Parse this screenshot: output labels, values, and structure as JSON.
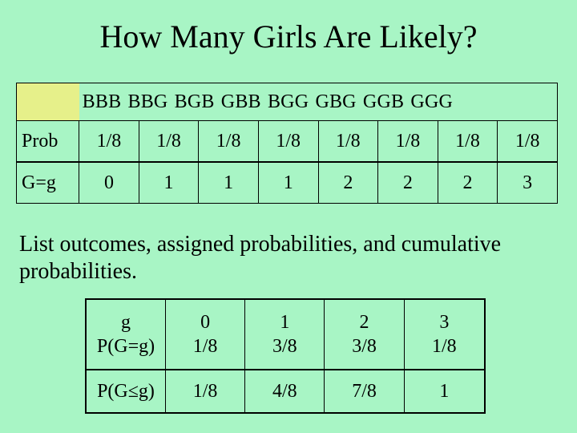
{
  "title": "How Many Girls Are Likely?",
  "outcomes_table": {
    "outcomes": [
      "BBB",
      "BBG",
      "BGB",
      "GBB",
      "BGG",
      "GBG",
      "GGB",
      "GGG"
    ],
    "rows": [
      {
        "label": "Prob",
        "values": [
          "1/8",
          "1/8",
          "1/8",
          "1/8",
          "1/8",
          "1/8",
          "1/8",
          "1/8"
        ]
      },
      {
        "label": "G=g",
        "values": [
          "0",
          "1",
          "1",
          "1",
          "2",
          "2",
          "2",
          "3"
        ]
      }
    ]
  },
  "paragraph": "List outcomes, assigned probabilities, and cumulative probabilities.",
  "cumulative_table": {
    "g_label": "g",
    "pmf_label": "P(G=g)",
    "cdf_label": "P(G≤g)",
    "g_values": [
      "0",
      "1",
      "2",
      "3"
    ],
    "pmf_values": [
      "1/8",
      "3/8",
      "3/8",
      "1/8"
    ],
    "cdf_values": [
      "1/8",
      "4/8",
      "7/8",
      "1"
    ]
  },
  "colors": {
    "background": "#a8f5c5",
    "corner_cell": "#e6f08a"
  }
}
